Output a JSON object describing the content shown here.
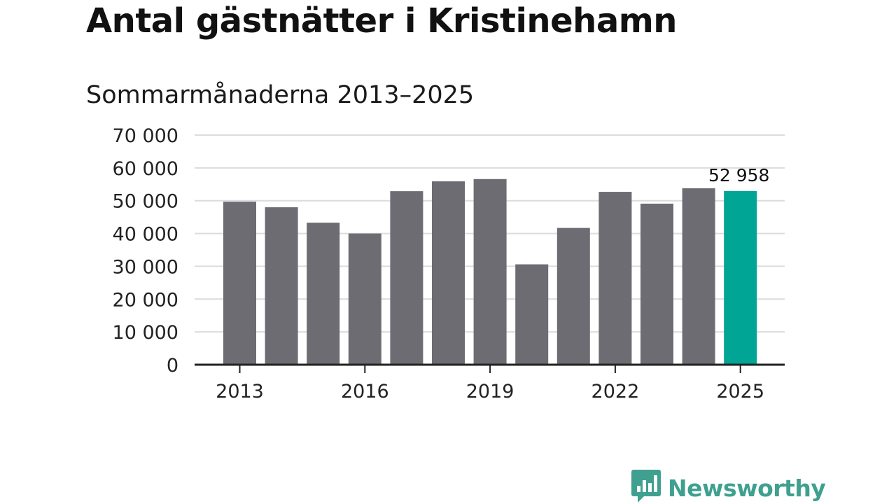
{
  "header": {
    "title": "Antal gästnätter i Kristinehamn",
    "subtitle": "Sommarmånaderna 2013–2025"
  },
  "chart_data": {
    "type": "bar",
    "categories": [
      "2013",
      "2014",
      "2015",
      "2016",
      "2017",
      "2018",
      "2019",
      "2020",
      "2021",
      "2022",
      "2023",
      "2024",
      "2025"
    ],
    "values": [
      49700,
      48000,
      43300,
      40000,
      52900,
      55900,
      56600,
      30600,
      41700,
      52700,
      49100,
      53800,
      52958
    ],
    "x_tick_labels": [
      "2013",
      "2016",
      "2019",
      "2022",
      "2025"
    ],
    "y_tick_labels": [
      "0",
      "10 000",
      "20 000",
      "30 000",
      "40 000",
      "50 000",
      "60 000",
      "70 000"
    ],
    "ylim": [
      0,
      70000
    ],
    "highlight_index": 12,
    "annotation": "52 958",
    "xlabel": "",
    "ylabel": "",
    "grid": true,
    "colors": {
      "bar": "#6d6c73",
      "highlight": "#00a596",
      "grid": "#dcdcdc",
      "axis": "#222222"
    }
  },
  "brand": {
    "name": "Newsworthy",
    "icon": "bar-chart-speech-bubble-icon",
    "color": "#3fa08f"
  }
}
